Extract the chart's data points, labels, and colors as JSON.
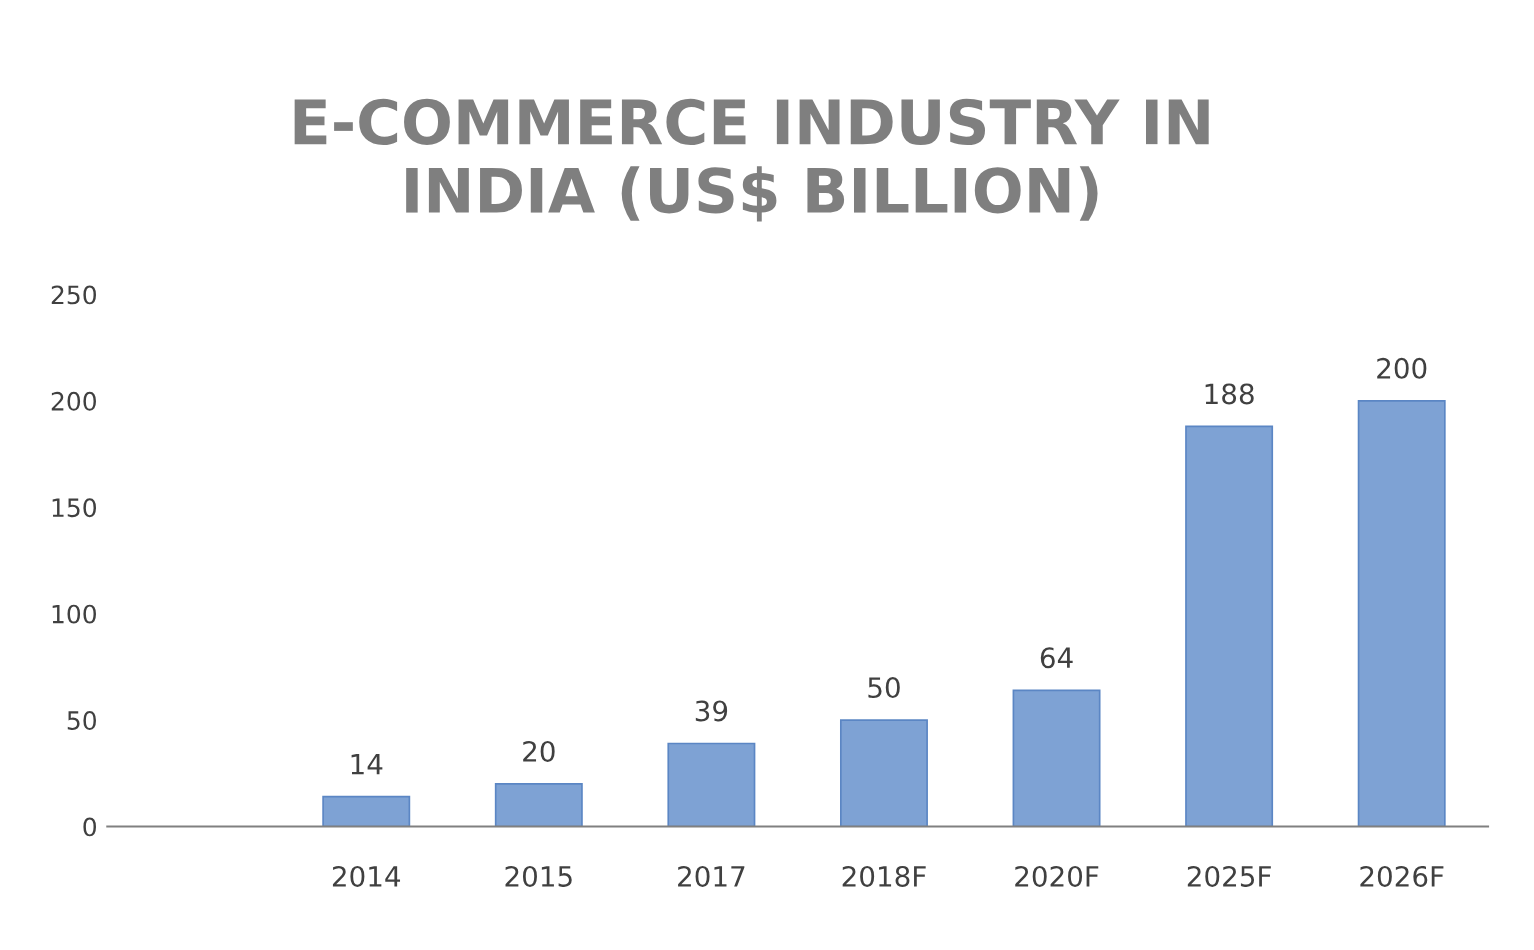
{
  "chart_data": {
    "type": "bar",
    "title": "E-COMMERCE INDUSTRY IN\nINDIA (US$ BILLION)",
    "categories": [
      null,
      "2014",
      "2015",
      "2017",
      "2018F",
      "2020F",
      "2025F",
      "2026F"
    ],
    "values": [
      null,
      14,
      20,
      39,
      50,
      64,
      188,
      200
    ],
    "color": "#7ea2d4",
    "ylim": [
      0,
      250
    ],
    "yticks": [
      0,
      50,
      100,
      150,
      200,
      250
    ],
    "data_labels": true,
    "grid": false
  }
}
